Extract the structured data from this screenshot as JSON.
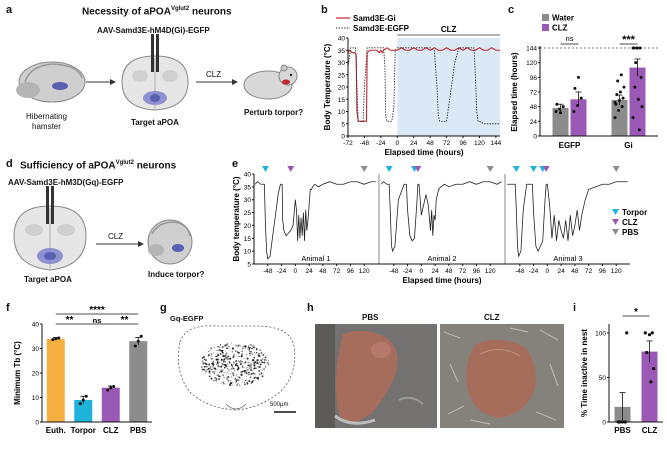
{
  "panels": [
    "a",
    "b",
    "c",
    "d",
    "e",
    "f",
    "g",
    "h",
    "i"
  ],
  "a": {
    "title": "Necessity of aPOA",
    "title_sup": "Vglut2",
    "title_tail": " neurons",
    "virus": "AAV-Samd3E-hM4D(Gi)-EGFP",
    "left_label": "Hibernating\nhamster",
    "left_label_1": "Hibernating",
    "left_label_2": "hamster",
    "mid_label": "Target aPOA",
    "drug": "CLZ",
    "right_label": "Perturb torpor?"
  },
  "d": {
    "title": "Sufficiency of aPOA",
    "title_sup": "Vglut2",
    "title_tail": " neurons",
    "virus": "AAV-Samd3E-hM3D(Gq)-EGFP",
    "mid_label": "Target aPOA",
    "drug": "CLZ",
    "right_label": "Induce torpor?"
  },
  "colors": {
    "gi": "#c0272d",
    "egfp": "#333333",
    "water": "#8c8c8c",
    "clz": "#9b59b6",
    "euth": "#f5b041",
    "torpor": "#1fb3d9",
    "pbs": "#8c8c8c",
    "shade": "#dbe9f7",
    "brain_target": "#5b5fb0"
  },
  "chart_data": [
    {
      "panel": "b",
      "type": "line",
      "legend": [
        "Samd3E-Gi",
        "Samd3E-EGFP"
      ],
      "shaded_label": "CLZ",
      "xlabel": "Elapsed time (hours)",
      "ylabel": "Body Temperature (°C)",
      "xticks": [
        "-72",
        "-48",
        "-24",
        "0",
        "24",
        "48",
        "72",
        "96",
        "120",
        "144"
      ],
      "yticks": [
        "0",
        "5",
        "10",
        "15",
        "20",
        "25",
        "30",
        "35",
        "40"
      ],
      "xlim": [
        -72,
        150
      ],
      "ylim": [
        0,
        40
      ],
      "shade_range": [
        0,
        150
      ],
      "series": [
        {
          "name": "Samd3E-Gi",
          "style": "solid",
          "x": [
            -72,
            -70,
            -66,
            -62,
            -60,
            -59,
            -57,
            -50,
            -47,
            -45,
            -44,
            -40,
            -36,
            -30,
            -26,
            -24,
            -22,
            -20,
            -15,
            -10,
            -5,
            0,
            6,
            12,
            18,
            24,
            30,
            36,
            42,
            48,
            54,
            60,
            66,
            72,
            78,
            84,
            90,
            96,
            102,
            108,
            114,
            120,
            126,
            132,
            138,
            144,
            150
          ],
          "y": [
            34,
            35,
            34,
            34,
            33,
            10,
            6,
            6,
            6,
            6,
            34,
            35,
            35,
            35,
            34,
            35,
            34,
            35,
            36,
            35,
            35,
            35,
            36,
            35,
            35,
            36,
            35,
            35,
            36,
            35,
            36,
            35,
            35,
            36,
            35,
            35,
            36,
            35,
            36,
            35,
            35,
            36,
            35,
            35,
            36,
            35,
            35
          ]
        },
        {
          "name": "Samd3E-EGFP",
          "style": "dotted",
          "x": [
            -72,
            -68,
            -64,
            -61,
            -59,
            -57,
            -55,
            -52,
            -50,
            -48,
            -44,
            -40,
            -30,
            -24,
            -20,
            -18,
            -17,
            -15,
            -12,
            -8,
            -5,
            -3,
            0,
            6,
            12,
            24,
            36,
            48,
            54,
            58,
            60,
            62,
            66,
            72,
            84,
            90,
            96,
            102,
            108,
            112,
            114,
            116,
            118,
            120,
            126,
            132,
            138,
            144,
            150
          ],
          "y": [
            28,
            36,
            36,
            36,
            20,
            6,
            6,
            6,
            6,
            20,
            36,
            36,
            36,
            36,
            36,
            28,
            8,
            6,
            6,
            6,
            12,
            35,
            36,
            36,
            36,
            36,
            36,
            36,
            35,
            20,
            8,
            6,
            6,
            6,
            30,
            36,
            36,
            36,
            36,
            36,
            25,
            10,
            6,
            6,
            5,
            5,
            5,
            5,
            5
          ]
        }
      ]
    },
    {
      "panel": "c",
      "type": "bar",
      "categories": [
        "EGFP",
        "Gi"
      ],
      "legend": [
        "Water",
        "CLZ"
      ],
      "ylabel": "Elapsed time (hours)",
      "yticks": [
        "0",
        "24",
        "48",
        "72",
        "96",
        "120",
        "144"
      ],
      "ylim": [
        0,
        144
      ],
      "series": [
        {
          "name": "Water",
          "values": [
            46,
            59
          ],
          "sem": [
            6,
            8
          ],
          "points": [
            [
              40,
              44,
              48,
              52,
              38
            ],
            [
              30,
              42,
              48,
              52,
              58,
              62,
              68,
              72,
              80,
              90,
              100,
              55
            ]
          ]
        },
        {
          "name": "CLZ",
          "values": [
            60,
            112
          ],
          "sem": [
            12,
            14
          ],
          "points": [
            [
              40,
              50,
              62,
              78,
              96
            ],
            [
              144,
              144,
              144,
              144,
              144,
              96,
              80,
              60,
              48,
              120,
              10,
              30
            ]
          ]
        }
      ],
      "annotations": [
        "ns",
        "***"
      ]
    },
    {
      "panel": "e",
      "type": "line",
      "ylabel": "Body temperature (°C)",
      "xlabel": "Elapsed time (hours)",
      "yticks": [
        "5",
        "10",
        "15",
        "20",
        "25",
        "30",
        "35",
        "40"
      ],
      "xticks": [
        "-48",
        "-24",
        "0",
        "24",
        "48",
        "72",
        "96",
        "120"
      ],
      "ylim": [
        5,
        40
      ],
      "legend": [
        "Torpor",
        "CLZ",
        "PBS"
      ],
      "subplots": [
        {
          "name": "Animal 1",
          "x": [
            -70,
            -66,
            -60,
            -54,
            -52,
            -50,
            -48,
            -44,
            -40,
            -34,
            -30,
            -26,
            -23,
            -22,
            -20,
            -16,
            -12,
            -8,
            -4,
            0,
            2,
            4,
            6,
            8,
            10,
            12,
            14,
            16,
            18,
            20,
            22,
            24,
            26,
            28,
            30,
            34,
            40,
            48,
            60,
            72,
            84,
            96,
            108,
            120,
            132,
            140
          ],
          "y": [
            36,
            37,
            36,
            36,
            20,
            10,
            7,
            8,
            15,
            25,
            32,
            36,
            36,
            22,
            18,
            16,
            17,
            18,
            20,
            30,
            26,
            14,
            24,
            15,
            23,
            16,
            25,
            14,
            26,
            18,
            22,
            28,
            34,
            34,
            35,
            36,
            35,
            36,
            37,
            36,
            36,
            37,
            37,
            36,
            37,
            37
          ],
          "torpor_markers": [
            -52
          ],
          "clz_markers": [
            -8
          ],
          "pbs_markers": [
            120
          ]
        },
        {
          "name": "Animal 2",
          "x": [
            -70,
            -66,
            -60,
            -56,
            -54,
            -52,
            -50,
            -46,
            -40,
            -30,
            -26,
            -24,
            -20,
            -16,
            -12,
            -8,
            -6,
            -4,
            -2,
            0,
            4,
            8,
            12,
            16,
            18,
            20,
            22,
            24,
            26,
            28,
            30,
            34,
            40,
            48,
            60,
            72,
            84,
            96,
            108,
            120,
            132,
            140
          ],
          "y": [
            36,
            37,
            36,
            36,
            25,
            12,
            10,
            12,
            30,
            36,
            36,
            26,
            16,
            14,
            15,
            28,
            36,
            36,
            30,
            24,
            28,
            32,
            28,
            18,
            26,
            16,
            24,
            22,
            30,
            32,
            34,
            35,
            36,
            35,
            36,
            36,
            37,
            36,
            37,
            37,
            36,
            37
          ],
          "torpor_markers": [
            -56,
            -12
          ],
          "clz_markers": [
            -6
          ],
          "pbs_markers": [
            120
          ]
        },
        {
          "name": "Animal 3",
          "x": [
            -70,
            -66,
            -60,
            -56,
            -54,
            -52,
            -50,
            -46,
            -42,
            -36,
            -30,
            -26,
            -24,
            -20,
            -16,
            -12,
            -8,
            -4,
            -2,
            0,
            4,
            8,
            12,
            16,
            20,
            24,
            28,
            32,
            36,
            40,
            44,
            48,
            52,
            56,
            60,
            66,
            72,
            84,
            96,
            108,
            120,
            130,
            140
          ],
          "y": [
            36,
            36,
            36,
            36,
            26,
            12,
            8,
            10,
            26,
            36,
            36,
            36,
            25,
            12,
            10,
            12,
            14,
            30,
            36,
            36,
            28,
            15,
            24,
            14,
            22,
            18,
            15,
            22,
            14,
            24,
            16,
            20,
            26,
            18,
            24,
            30,
            34,
            35,
            36,
            36,
            37,
            37,
            37
          ],
          "torpor_markers": [
            -54,
            -24,
            -8
          ],
          "clz_markers": [
            -2
          ],
          "pbs_markers": [
            120
          ]
        }
      ]
    },
    {
      "panel": "f",
      "type": "bar",
      "categories": [
        "Euth.",
        "Torpor",
        "CLZ",
        "PBS"
      ],
      "ylabel": "Minimum Tb (°C)",
      "yticks": [
        "0",
        "10",
        "20",
        "30",
        "40"
      ],
      "ylim": [
        0,
        40
      ],
      "values": [
        34,
        9,
        14,
        33
      ],
      "sem": [
        0.5,
        1.5,
        0.7,
        1.5
      ],
      "points": [
        [
          33.6,
          34,
          34.3
        ],
        [
          7.5,
          9,
          10.5
        ],
        [
          13,
          14,
          14.5
        ],
        [
          31,
          33,
          35
        ]
      ],
      "annotations": [
        "****",
        "**",
        "ns",
        "**"
      ]
    },
    {
      "panel": "i",
      "type": "bar",
      "categories": [
        "PBS",
        "CLZ"
      ],
      "ylabel": "% Time inactive in nest",
      "yticks": [
        "0",
        "50",
        "100"
      ],
      "ylim": [
        0,
        110
      ],
      "values": [
        17,
        79
      ],
      "sem": [
        16,
        12
      ],
      "points": [
        [
          0,
          0,
          0,
          0,
          100
        ],
        [
          100,
          100,
          98,
          78,
          60,
          45
        ]
      ],
      "annotations": [
        "*"
      ]
    }
  ],
  "g": {
    "label": "Gq-EGFP",
    "scalebar": "500μm"
  },
  "h": {
    "left_label": "PBS",
    "right_label": "CLZ"
  }
}
